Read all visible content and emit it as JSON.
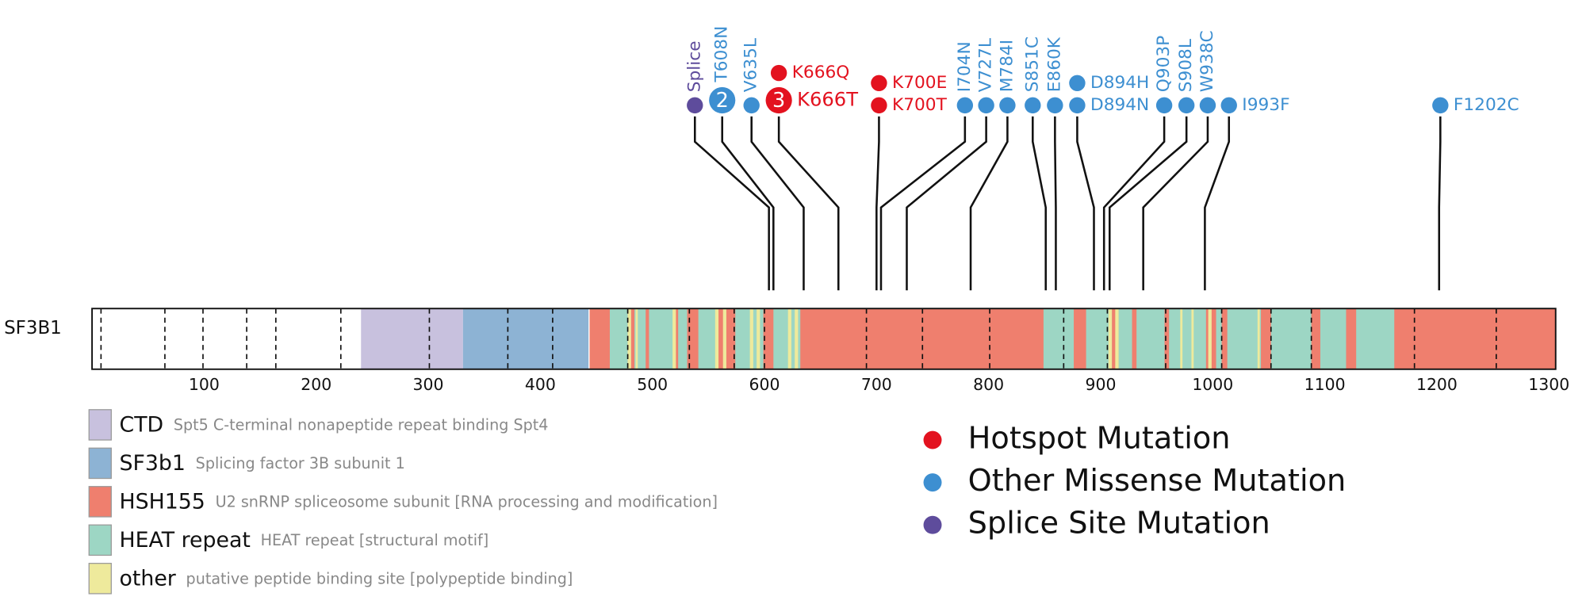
{
  "chart_data": {
    "type": "lollipop",
    "protein": "SF3B1",
    "xlim": [
      0,
      1306
    ],
    "xticks": [
      100,
      200,
      300,
      400,
      500,
      600,
      700,
      800,
      900,
      1000,
      1100,
      1200,
      1300
    ],
    "domain_types": [
      {
        "name": "CTD",
        "description": "Spt5 C-terminal nonapeptide repeat binding Spt4",
        "color": "#c8c1de"
      },
      {
        "name": "SF3b1",
        "description": "Splicing factor 3B subunit 1",
        "color": "#8db3d4"
      },
      {
        "name": "HSH155",
        "description": "U2 snRNP spliceosome subunit [RNA processing and modification]",
        "color": "#ef7f6e"
      },
      {
        "name": "HEAT repeat",
        "description": "HEAT repeat [structural motif]",
        "color": "#9dd6c4"
      },
      {
        "name": "other",
        "description": "putative peptide binding site [polypeptide binding]",
        "color": "#eeea9c"
      }
    ],
    "domains": [
      {
        "type": 0,
        "start": 240,
        "end": 331
      },
      {
        "type": 1,
        "start": 331,
        "end": 443
      },
      {
        "type": 2,
        "start": 444,
        "end": 1306
      },
      {
        "type": 3,
        "start": 462,
        "end": 478
      },
      {
        "type": 3,
        "start": 484,
        "end": 494
      },
      {
        "type": 3,
        "start": 497,
        "end": 519
      },
      {
        "type": 3,
        "start": 523,
        "end": 531
      },
      {
        "type": 3,
        "start": 541,
        "end": 558
      },
      {
        "type": 3,
        "start": 574,
        "end": 599
      },
      {
        "type": 3,
        "start": 608,
        "end": 632
      },
      {
        "type": 3,
        "start": 849,
        "end": 876
      },
      {
        "type": 3,
        "start": 887,
        "end": 910
      },
      {
        "type": 3,
        "start": 916,
        "end": 928
      },
      {
        "type": 3,
        "start": 932,
        "end": 957
      },
      {
        "type": 3,
        "start": 961,
        "end": 994
      },
      {
        "type": 3,
        "start": 1003,
        "end": 1008
      },
      {
        "type": 3,
        "start": 1013,
        "end": 1043
      },
      {
        "type": 3,
        "start": 1052,
        "end": 1088
      },
      {
        "type": 3,
        "start": 1096,
        "end": 1119
      },
      {
        "type": 3,
        "start": 1128,
        "end": 1162
      },
      {
        "type": 4,
        "start": 478,
        "end": 481
      },
      {
        "type": 4,
        "start": 485,
        "end": 487
      },
      {
        "type": 4,
        "start": 518,
        "end": 521
      },
      {
        "type": 4,
        "start": 556,
        "end": 559
      },
      {
        "type": 4,
        "start": 563,
        "end": 566
      },
      {
        "type": 4,
        "start": 587,
        "end": 590
      },
      {
        "type": 4,
        "start": 593,
        "end": 596
      },
      {
        "type": 4,
        "start": 621,
        "end": 624
      },
      {
        "type": 4,
        "start": 627,
        "end": 630
      },
      {
        "type": 4,
        "start": 907,
        "end": 910
      },
      {
        "type": 4,
        "start": 913,
        "end": 916
      },
      {
        "type": 4,
        "start": 971,
        "end": 973
      },
      {
        "type": 4,
        "start": 981,
        "end": 983
      },
      {
        "type": 4,
        "start": 996,
        "end": 999
      },
      {
        "type": 4,
        "start": 1040,
        "end": 1042
      }
    ],
    "dividers": [
      8,
      65,
      99,
      138,
      164,
      222,
      301,
      371,
      411,
      478,
      533,
      573,
      600,
      691,
      741,
      801,
      867,
      906,
      958,
      1008,
      1052,
      1088,
      1180,
      1253
    ],
    "mutation_types": [
      {
        "name": "Hotspot Mutation",
        "color": "#e3121f"
      },
      {
        "name": "Other Missense Mutation",
        "color": "#3d8fd1"
      },
      {
        "name": "Splice Site Mutation",
        "color": "#5e4c9c"
      }
    ],
    "lollipops": [
      {
        "position": 604,
        "mutations": [
          {
            "label": "Splice",
            "type": 2
          }
        ]
      },
      {
        "position": 608,
        "mutations": [
          {
            "label": "T608N",
            "type": 1,
            "count": 2
          }
        ]
      },
      {
        "position": 635,
        "mutations": [
          {
            "label": "V635L",
            "type": 1
          }
        ]
      },
      {
        "position": 666,
        "mutations": [
          {
            "label": "K666T",
            "type": 0,
            "count": 3
          },
          {
            "label": "K666Q",
            "type": 0
          }
        ]
      },
      {
        "position": 700,
        "mutations": [
          {
            "label": "K700T",
            "type": 0
          },
          {
            "label": "K700E",
            "type": 0
          }
        ]
      },
      {
        "position": 704,
        "mutations": [
          {
            "label": "I704N",
            "type": 1
          }
        ]
      },
      {
        "position": 727,
        "mutations": [
          {
            "label": "V727L",
            "type": 1
          }
        ]
      },
      {
        "position": 784,
        "mutations": [
          {
            "label": "M784I",
            "type": 1
          }
        ]
      },
      {
        "position": 851,
        "mutations": [
          {
            "label": "S851C",
            "type": 1
          }
        ]
      },
      {
        "position": 860,
        "mutations": [
          {
            "label": "E860K",
            "type": 1
          }
        ]
      },
      {
        "position": 894,
        "mutations": [
          {
            "label": "D894N",
            "type": 1
          },
          {
            "label": "D894H",
            "type": 1
          }
        ]
      },
      {
        "position": 903,
        "mutations": [
          {
            "label": "Q903P",
            "type": 1
          }
        ]
      },
      {
        "position": 908,
        "mutations": [
          {
            "label": "S908L",
            "type": 1
          }
        ]
      },
      {
        "position": 938,
        "mutations": [
          {
            "label": "W938C",
            "type": 1
          }
        ]
      },
      {
        "position": 993,
        "mutations": [
          {
            "label": "I993F",
            "type": 1
          }
        ]
      },
      {
        "position": 1202,
        "mutations": [
          {
            "label": "F1202C",
            "type": 1
          }
        ]
      }
    ]
  }
}
